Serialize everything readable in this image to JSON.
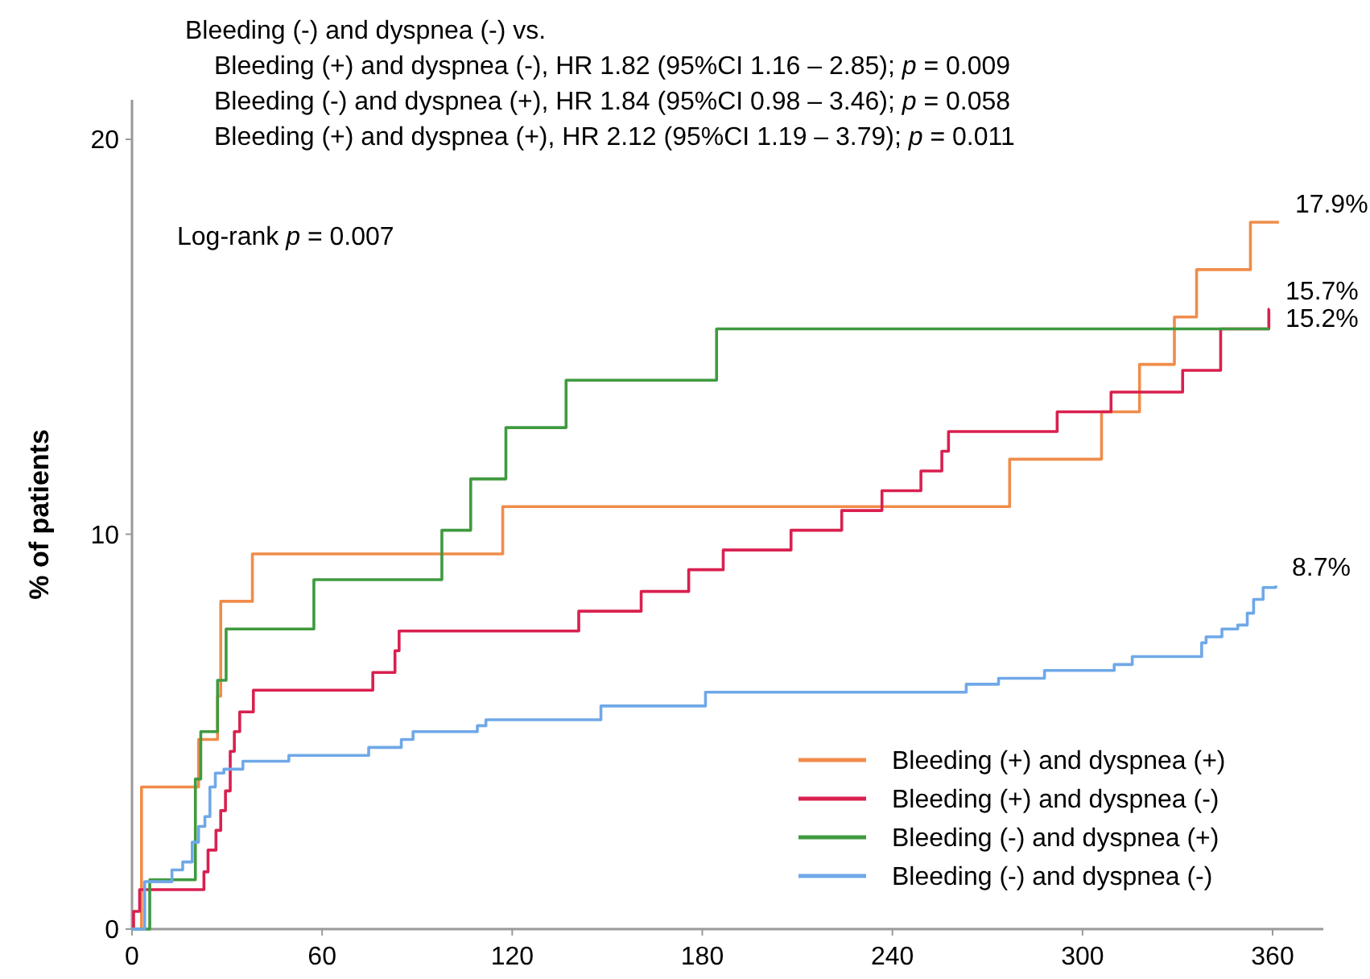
{
  "chart_data": {
    "type": "step",
    "ylabel": "% of patients",
    "xlim": [
      0,
      376
    ],
    "ylim": [
      0,
      21
    ],
    "xticks": [
      0,
      60,
      120,
      180,
      240,
      300,
      360
    ],
    "yticks": [
      0,
      10,
      20
    ],
    "grid": false,
    "legend": "bottom right",
    "marker": "none",
    "line_style": "solid",
    "annotations": [
      "Bleeding (-) and dyspnea (-) vs.",
      "Bleeding (+) and dyspnea (-), HR 1.82 (95%CI 1.16 – 2.85); p = 0.009",
      "Bleeding (-) and dyspnea (+), HR 1.84 (95%CI 0.98 – 3.46); p = 0.058",
      "Bleeding (+) and dyspnea (+), HR 2.12 (95%CI 1.19 – 3.79); p = 0.011",
      "Log-rank p = 0.007",
      {
        "text": "17.9%",
        "x": 362,
        "y": 17.9
      },
      {
        "text": "15.7%",
        "x": 359,
        "y": 15.7
      },
      {
        "text": "15.2%",
        "x": 359,
        "y": 15.2
      },
      {
        "text": "8.7%",
        "x": 361,
        "y": 8.7
      }
    ],
    "series": [
      {
        "name": "Bleeding (+) and dyspnea (+)",
        "color": "#f08c4a",
        "x": [
          0,
          3,
          21,
          27,
          28,
          38,
          117,
          277,
          306,
          318,
          329,
          336,
          353,
          362
        ],
        "values": [
          0,
          3.6,
          4.8,
          5.9,
          8.3,
          9.5,
          10.7,
          11.9,
          13.1,
          14.3,
          15.5,
          16.7,
          17.9,
          17.9
        ]
      },
      {
        "name": "Bleeding (+) and dyspnea (-)",
        "color": "#d9204f",
        "x": [
          0,
          0.5,
          2.4,
          22.7,
          24,
          26.5,
          28,
          29.5,
          31,
          32.3,
          34,
          38.3,
          76,
          83,
          84.3,
          141,
          160.7,
          175.7,
          186.6,
          208,
          224,
          236.7,
          249,
          255.6,
          257.7,
          292,
          309,
          331.6,
          343.6,
          358.8,
          359
        ],
        "values": [
          0,
          0.45,
          1.0,
          1.45,
          2.0,
          2.5,
          3.0,
          3.5,
          4.5,
          5.0,
          5.5,
          6.05,
          6.5,
          7.05,
          7.55,
          8.05,
          8.55,
          9.1,
          9.6,
          10.1,
          10.6,
          11.1,
          11.6,
          12.1,
          12.6,
          13.1,
          13.6,
          14.15,
          15.2,
          15.7,
          15.7
        ]
      },
      {
        "name": "Bleeding (-) and dyspnea (+)",
        "color": "#3f9a3f",
        "x": [
          0,
          5.6,
          20,
          21.7,
          27,
          29.7,
          57.4,
          97.8,
          106.9,
          118,
          137,
          184.5,
          359
        ],
        "values": [
          0,
          1.25,
          3.8,
          5.0,
          6.3,
          7.6,
          8.85,
          10.1,
          11.4,
          12.7,
          13.9,
          15.2,
          15.2
        ]
      },
      {
        "name": "Bleeding (-) and dyspnea (-)",
        "color": "#6fa8e8",
        "x": [
          0,
          4,
          12.6,
          16,
          19,
          21,
          23,
          24.6,
          26.3,
          29,
          35,
          49.5,
          74.7,
          85,
          88.7,
          109,
          111.7,
          148,
          181,
          263.3,
          273.5,
          288,
          310,
          315.7,
          337.6,
          339,
          344,
          349,
          352,
          354,
          357,
          361
        ],
        "values": [
          0,
          1.2,
          1.5,
          1.7,
          2.2,
          2.6,
          2.85,
          3.6,
          3.95,
          4.05,
          4.25,
          4.4,
          4.6,
          4.8,
          5.0,
          5.15,
          5.3,
          5.65,
          6.0,
          6.2,
          6.35,
          6.55,
          6.7,
          6.9,
          7.25,
          7.4,
          7.6,
          7.7,
          8.0,
          8.35,
          8.65,
          8.7
        ]
      }
    ]
  }
}
